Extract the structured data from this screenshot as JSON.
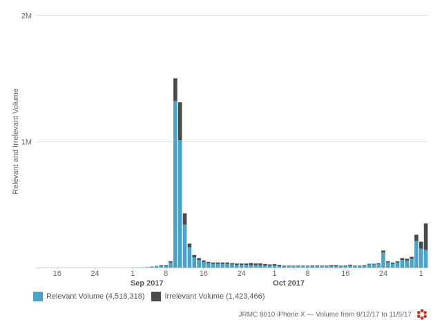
{
  "chart_data": {
    "type": "bar",
    "stacked": true,
    "ylabel": "Relevant and Irrelevant Volume",
    "ylim": [
      0,
      2000000
    ],
    "y_ticks": [
      {
        "value": 1000000,
        "label": "1M"
      },
      {
        "value": 2000000,
        "label": "2M"
      }
    ],
    "x_ticks": [
      {
        "index": 4,
        "label": "16"
      },
      {
        "index": 12,
        "label": "24"
      },
      {
        "index": 20,
        "label": "1"
      },
      {
        "index": 27,
        "label": "8"
      },
      {
        "index": 35,
        "label": "16"
      },
      {
        "index": 43,
        "label": "24"
      },
      {
        "index": 50,
        "label": "1"
      },
      {
        "index": 57,
        "label": "8"
      },
      {
        "index": 65,
        "label": "16"
      },
      {
        "index": 73,
        "label": "24"
      },
      {
        "index": 81,
        "label": "1"
      }
    ],
    "month_labels": [
      {
        "index": 23,
        "label": "Sep 2017"
      },
      {
        "index": 53,
        "label": "Oct 2017"
      }
    ],
    "series": [
      {
        "name": "Relevant Volume (4,518,318)",
        "color": "#4aa3c8",
        "values": [
          0,
          0,
          0,
          0,
          0,
          0,
          0,
          0,
          0,
          0,
          0,
          0,
          0,
          0,
          0,
          0,
          0,
          0,
          0,
          0,
          1000,
          1500,
          2000,
          4000,
          6000,
          10000,
          15000,
          15000,
          40000,
          1320000,
          1010000,
          340000,
          160000,
          80000,
          60000,
          45000,
          35000,
          30000,
          30000,
          30000,
          30000,
          25000,
          22000,
          20000,
          20000,
          18000,
          18000,
          18000,
          16000,
          15000,
          15000,
          12000,
          10000,
          10000,
          10000,
          10000,
          10000,
          10000,
          12000,
          12000,
          10000,
          10000,
          12000,
          12000,
          10000,
          12000,
          15000,
          10000,
          10000,
          15000,
          25000,
          25000,
          30000,
          120000,
          40000,
          30000,
          40000,
          60000,
          55000,
          70000,
          210000,
          150000,
          140000
        ]
      },
      {
        "name": "Irrelevant Volume (1,423,466)",
        "color": "#4a4a4a",
        "values": [
          0,
          0,
          0,
          0,
          0,
          0,
          0,
          0,
          0,
          0,
          0,
          0,
          0,
          0,
          0,
          0,
          0,
          0,
          0,
          0,
          0,
          0,
          0,
          0,
          2000,
          3000,
          5000,
          5000,
          10000,
          180000,
          300000,
          90000,
          30000,
          20000,
          15000,
          12000,
          10000,
          10000,
          10000,
          10000,
          10000,
          10000,
          10000,
          12000,
          12000,
          18000,
          15000,
          15000,
          12000,
          10000,
          12000,
          10000,
          5000,
          5000,
          5000,
          5000,
          5000,
          5000,
          5000,
          5000,
          5000,
          5000,
          8000,
          8000,
          5000,
          5000,
          8000,
          5000,
          5000,
          5000,
          5000,
          5000,
          5000,
          15000,
          10000,
          10000,
          10000,
          15000,
          15000,
          15000,
          50000,
          55000,
          210000
        ]
      }
    ],
    "legend_position": "bottom-left",
    "grid": true
  },
  "footer": {
    "text": "JRMC 8010 iPhone X — Volume from 8/12/17 to 11/5/17"
  }
}
